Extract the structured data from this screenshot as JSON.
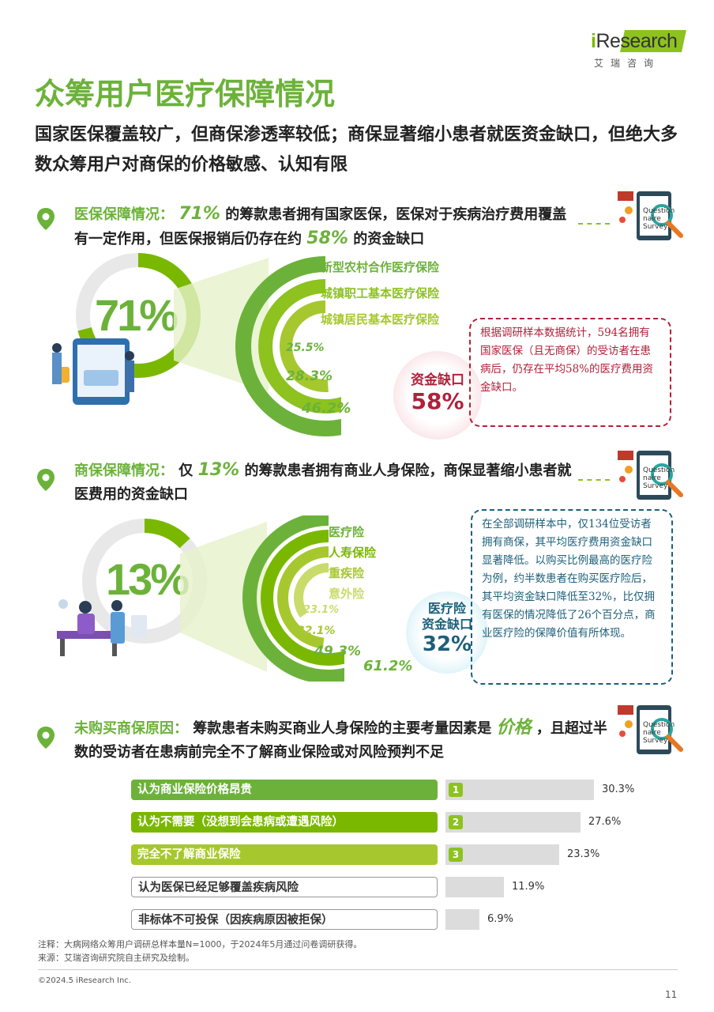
{
  "logo": {
    "brand_prefix": "i",
    "brand_rest": "Research",
    "sub": "艾瑞咨询"
  },
  "title": "众筹用户医疗保障情况",
  "subtitle": "国家医保覆盖较广，但商保渗透率较低；商保显著缩小患者就医资金缺口，但绝大多数众筹用户对商保的价格敏感、认知有限",
  "survey_icon_text": "Question naire Survey",
  "section1": {
    "label": "医保保障情况：",
    "num": "71%",
    "text_a": "的筹款患者拥有国家医保，医保对于疾病治疗费用覆盖有一定作用，但医保报销后仍存在约",
    "num2": "58%",
    "text_b": "的资金缺口",
    "big_pct": "71%",
    "big_ratio": 0.71,
    "legend": [
      "新型农村合作医疗保险",
      "城镇职工基本医疗保险",
      "城镇居民基本医疗保险"
    ],
    "values": [
      "25.5%",
      "28.3%",
      "46.2%"
    ],
    "value_ratios": [
      0.255,
      0.283,
      0.462
    ],
    "gap_label": "资金缺口",
    "gap_value": "58%",
    "note": "根据调研样本数据统计，594名拥有国家医保（且无商保）的受访者在患病后，仍存在平均58%的医疗费用资金缺口。",
    "note_color": "#b0213a"
  },
  "section2": {
    "label": "商保保障情况：",
    "pre": "仅",
    "num": "13%",
    "text": "的筹款患者拥有商业人身保险，商保显著缩小患者就医费用的资金缺口",
    "big_pct": "13%",
    "big_ratio": 0.13,
    "legend": [
      "医疗险",
      "人寿保险",
      "重疾险",
      "意外险"
    ],
    "values": [
      "23.1%",
      "32.1%",
      "49.3%",
      "61.2%"
    ],
    "value_ratios": [
      0.231,
      0.321,
      0.493,
      0.612
    ],
    "gap_label1": "医疗险",
    "gap_label2": "资金缺口",
    "gap_value": "32%",
    "note": "在全部调研样本中，仅134位受访者拥有商保，其平均医疗费用资金缺口显著降低。以购买比例最高的医疗险为例，约半数患者在购买医疗险后，其平均资金缺口降低至32%，比仅拥有医保的情况降低了26个百分点，商业医疗险的保障价值有所体现。",
    "note_color": "#1d5f7a"
  },
  "section3": {
    "label": "未购买商保原因：",
    "text_a": "筹款患者未购买商业人身保险的主要考量因素是",
    "num": "价格",
    "text_b": "，且超过半数的受访者在患病前完全不了解商业保险或对风险预判不足",
    "bars": [
      {
        "label": "认为商业保险价格昂贵",
        "value": "30.3%",
        "ratio": 0.303,
        "rank": "1"
      },
      {
        "label": "认为不需要（没想到会患病或遭遇风险）",
        "value": "27.6%",
        "ratio": 0.276,
        "rank": "2"
      },
      {
        "label": "完全不了解商业保险",
        "value": "23.3%",
        "ratio": 0.233,
        "rank": "3"
      },
      {
        "label": "认为医保已经足够覆盖疾病风险",
        "value": "11.9%",
        "ratio": 0.119,
        "rank": ""
      },
      {
        "label": "非标体不可投保（因疾病原因被拒保）",
        "value": "6.9%",
        "ratio": 0.069,
        "rank": ""
      }
    ]
  },
  "footer": {
    "note": "注释：大病网络众筹用户调研总样本量N=1000，于2024年5月通过问卷调研获得。",
    "source": "来源：艾瑞咨询研究院自主研究及绘制。",
    "copyright": "©2024.5 iResearch Inc.",
    "page": "11"
  },
  "colors": {
    "green": "#6cb23a",
    "light_green": "#8dc21f",
    "lime": "#b5cc2e",
    "pale": "#c9dc6a",
    "grey": "#e5e5e5",
    "red": "#b0213a",
    "teal": "#1d5f7a"
  }
}
